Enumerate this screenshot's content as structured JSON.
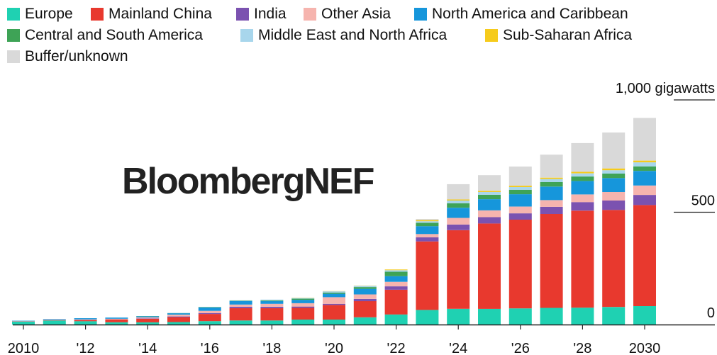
{
  "legend": [
    {
      "label": "Europe",
      "color": "#1fd1b2"
    },
    {
      "label": "Mainland China",
      "color": "#e8392e"
    },
    {
      "label": "India",
      "color": "#7b52b0"
    },
    {
      "label": "Other Asia",
      "color": "#f6b4ae"
    },
    {
      "label": "North America and Caribbean",
      "color": "#1696db"
    },
    {
      "label": "Central and South America",
      "color": "#3ea356"
    },
    {
      "label": "Middle East and North Africa",
      "color": "#a8d6ec"
    },
    {
      "label": "Sub-Saharan Africa",
      "color": "#f6cb1c"
    },
    {
      "label": "Buffer/unknown",
      "color": "#d9d9d9"
    }
  ],
  "watermark": "BloombergNEF",
  "chart_data": {
    "type": "bar",
    "stacked": true,
    "ylabel": "",
    "ylim": [
      0,
      1000
    ],
    "y_ticks": [
      {
        "value": 0,
        "label": "0"
      },
      {
        "value": 500,
        "label": "500"
      },
      {
        "value": 1000,
        "label": "1,000 gigawatts"
      }
    ],
    "categories": [
      "2010",
      "2011",
      "2012",
      "2013",
      "2014",
      "2015",
      "2016",
      "2017",
      "2018",
      "2019",
      "2020",
      "2021",
      "2022",
      "2023",
      "2024",
      "2025",
      "2026",
      "2027",
      "2028",
      "2029",
      "2030"
    ],
    "x_tick_labels": [
      {
        "category": "2010",
        "label": "2010"
      },
      {
        "category": "2012",
        "label": "'12"
      },
      {
        "category": "2014",
        "label": "'14"
      },
      {
        "category": "2016",
        "label": "'16"
      },
      {
        "category": "2018",
        "label": "'18"
      },
      {
        "category": "2020",
        "label": "'20"
      },
      {
        "category": "2022",
        "label": "'22"
      },
      {
        "category": "2024",
        "label": "'24"
      },
      {
        "category": "2026",
        "label": "'26"
      },
      {
        "category": "2028",
        "label": "'28"
      },
      {
        "category": "2030",
        "label": "2030"
      }
    ],
    "series": [
      {
        "name": "Europe",
        "color": "#1fd1b2",
        "values": [
          13,
          18,
          15,
          10,
          10,
          11,
          15,
          18,
          18,
          22,
          22,
          32,
          45,
          65,
          70,
          70,
          72,
          74,
          75,
          78,
          82
        ]
      },
      {
        "name": "Mainland China",
        "color": "#e8392e",
        "values": [
          1,
          2,
          5,
          12,
          16,
          22,
          32,
          55,
          55,
          52,
          65,
          72,
          110,
          305,
          350,
          380,
          395,
          418,
          432,
          432,
          450
        ]
      },
      {
        "name": "India",
        "color": "#7b52b0",
        "values": [
          0,
          0,
          1,
          1,
          2,
          3,
          4,
          6,
          6,
          6,
          5,
          10,
          15,
          18,
          25,
          28,
          28,
          32,
          38,
          42,
          45
        ]
      },
      {
        "name": "Other Asia",
        "color": "#f6b4ae",
        "values": [
          1,
          1,
          2,
          3,
          4,
          8,
          10,
          10,
          13,
          15,
          30,
          20,
          20,
          15,
          30,
          30,
          30,
          30,
          34,
          38,
          42
        ]
      },
      {
        "name": "North America and Caribbean",
        "color": "#1696db",
        "values": [
          2,
          3,
          5,
          5,
          5,
          6,
          15,
          15,
          12,
          15,
          15,
          25,
          25,
          35,
          45,
          50,
          55,
          60,
          60,
          62,
          65
        ]
      },
      {
        "name": "Central and South America",
        "color": "#3ea356",
        "values": [
          0,
          0,
          0,
          0,
          1,
          1,
          2,
          2,
          3,
          5,
          5,
          8,
          20,
          15,
          20,
          20,
          20,
          20,
          20,
          20,
          20
        ]
      },
      {
        "name": "Middle East and North Africa",
        "color": "#a8d6ec",
        "values": [
          0,
          0,
          0,
          0,
          0,
          1,
          1,
          2,
          4,
          3,
          6,
          5,
          7,
          7,
          12,
          12,
          12,
          14,
          14,
          15,
          18
        ]
      },
      {
        "name": "Sub-Saharan Africa",
        "color": "#f6cb1c",
        "values": [
          0,
          0,
          0,
          0,
          0,
          0,
          0,
          0,
          0,
          1,
          1,
          1,
          3,
          5,
          5,
          5,
          6,
          6,
          7,
          8,
          8
        ]
      },
      {
        "name": "Buffer/unknown",
        "color": "#d9d9d9",
        "values": [
          0,
          0,
          0,
          0,
          0,
          0,
          0,
          0,
          0,
          0,
          0,
          0,
          0,
          5,
          68,
          70,
          85,
          102,
          128,
          160,
          190
        ]
      }
    ]
  }
}
